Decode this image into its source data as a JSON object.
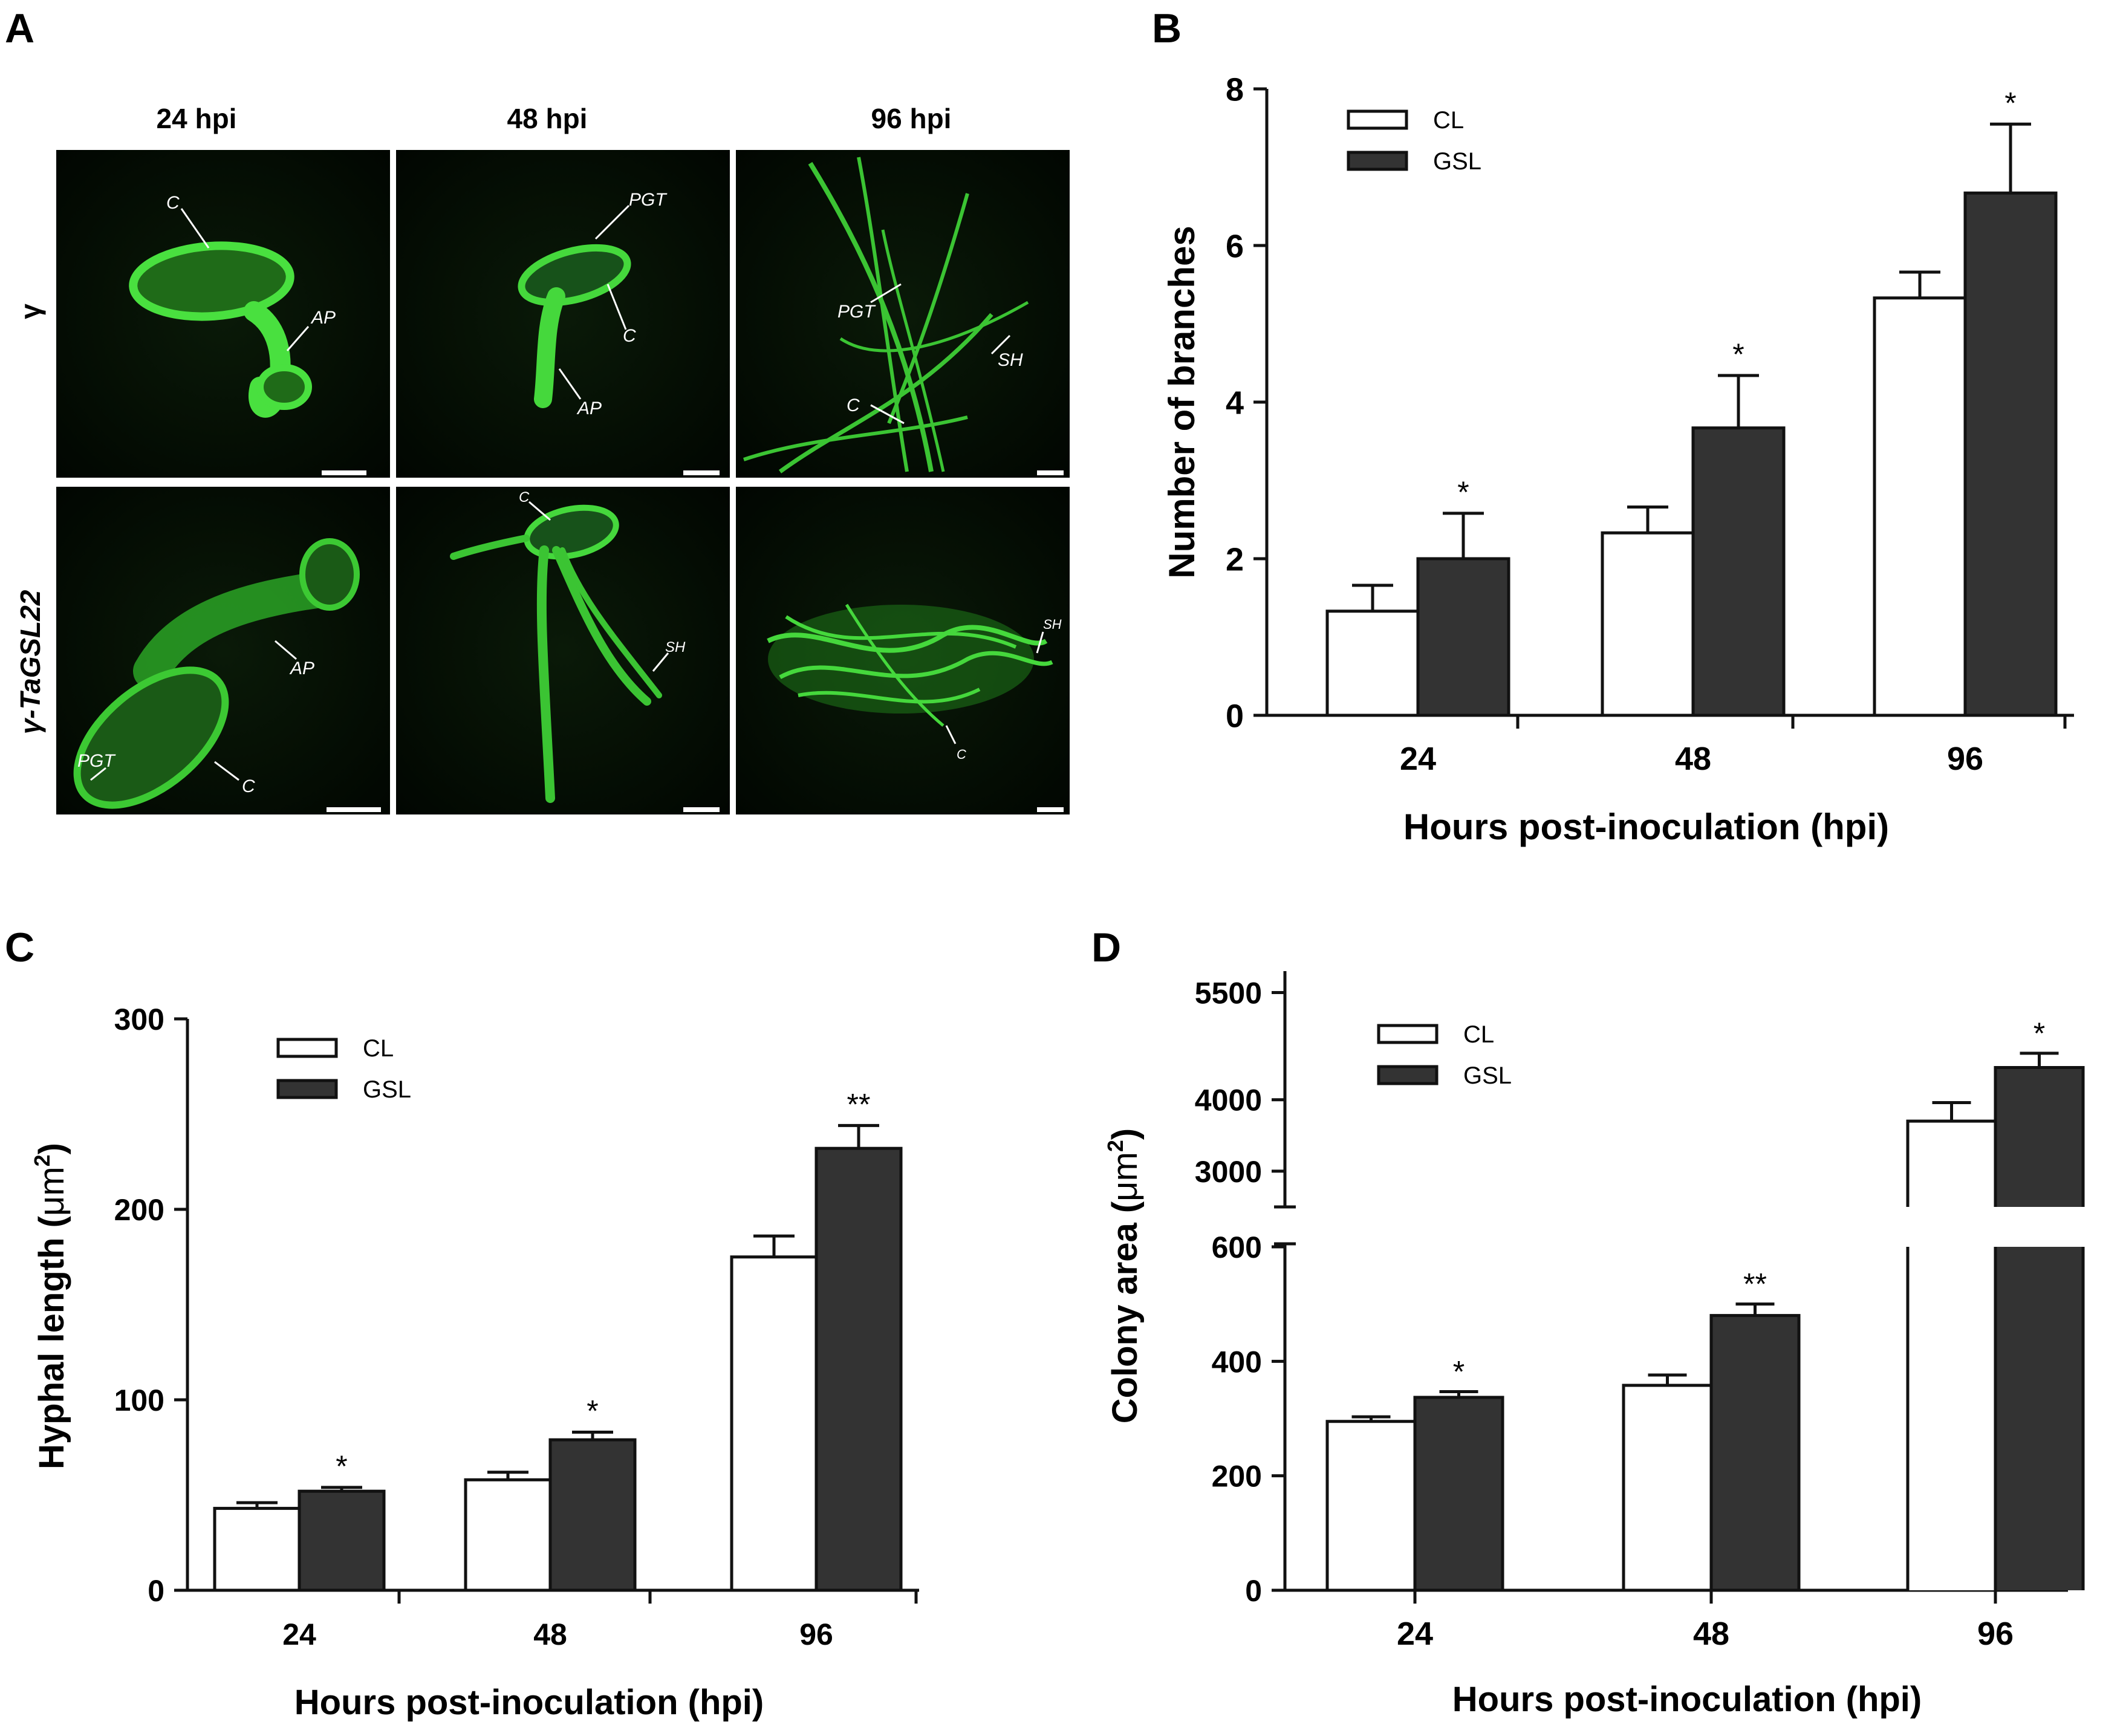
{
  "colors": {
    "cl_fill": "#ffffff",
    "gsl_fill": "#333333",
    "axis": "#111111",
    "micro_bg": "#020a02",
    "micro_green": "#3fd43a"
  },
  "panel_labels": [
    "A",
    "B",
    "C",
    "D"
  ],
  "micrographs": {
    "columns": [
      "24 hpi",
      "48 hpi",
      "96 hpi"
    ],
    "rows": [
      "γ",
      "γ-TaGSL22"
    ],
    "annotations": {
      "r0c0": [
        "C",
        "AP"
      ],
      "r0c1": [
        "PGT",
        "C",
        "AP"
      ],
      "r0c2": [
        "PGT",
        "SH",
        "C"
      ],
      "r1c0": [
        "AP",
        "PGT",
        "C"
      ],
      "r1c1": [
        "C",
        "SH"
      ],
      "r1c2": [
        "SH",
        "C"
      ]
    }
  },
  "chart_data": [
    {
      "type": "bar",
      "panel": "B",
      "categories": [
        "24",
        "48",
        "96"
      ],
      "xlabel": "Hours post-inoculation (hpi)",
      "ylabel": "Number of branches",
      "ylim": [
        0,
        8
      ],
      "yticks": [
        "0",
        "2",
        "4",
        "6",
        "8"
      ],
      "legend": {
        "position": "top-left"
      },
      "series": [
        {
          "name": "CL",
          "values": [
            1.33,
            2.33,
            5.33
          ],
          "errors": [
            0.33,
            0.33,
            0.33
          ],
          "sig": [
            "",
            "",
            ""
          ]
        },
        {
          "name": "GSL",
          "values": [
            2.0,
            3.67,
            6.67
          ],
          "errors": [
            0.58,
            0.67,
            0.88
          ],
          "sig": [
            "*",
            "*",
            "*"
          ]
        }
      ]
    },
    {
      "type": "bar",
      "panel": "C",
      "categories": [
        "24",
        "48",
        "96"
      ],
      "xlabel": "Hours post-inoculation (hpi)",
      "ylabel": "Hyphal length (μm2)",
      "ylabel_main": "Hyphal length (",
      "ylabel_unit": "μm",
      "ylabel_sup": "2",
      "ylabel_close": ")",
      "ylim": [
        0,
        300
      ],
      "yticks": [
        "0",
        "100",
        "200",
        "300"
      ],
      "legend": {
        "position": "top-left"
      },
      "series": [
        {
          "name": "CL",
          "values": [
            43,
            58,
            175
          ],
          "errors": [
            3,
            4,
            11
          ],
          "sig": [
            "",
            "",
            ""
          ]
        },
        {
          "name": "GSL",
          "values": [
            52,
            79,
            232
          ],
          "errors": [
            2,
            4,
            12
          ],
          "sig": [
            "*",
            "*",
            "**"
          ]
        }
      ]
    },
    {
      "type": "bar",
      "panel": "D",
      "categories": [
        "24",
        "48",
        "96"
      ],
      "xlabel": "Hours post-inoculation (hpi)",
      "ylabel": "Colony area (μm2)",
      "ylabel_main": "Colony area (",
      "ylabel_unit": "μm",
      "ylabel_sup": "2",
      "ylabel_close": ")",
      "broken_axis": {
        "lower": [
          0,
          600
        ],
        "upper": [
          2500,
          5800
        ]
      },
      "yticks_lower": [
        "0",
        "200",
        "400",
        "600"
      ],
      "yticks_upper": [
        "3000",
        "4000",
        "5500"
      ],
      "legend": {
        "position": "top-left"
      },
      "series": [
        {
          "name": "CL",
          "values": [
            295,
            358,
            3700
          ],
          "errors": [
            8,
            18,
            260
          ],
          "sig": [
            "",
            "",
            ""
          ]
        },
        {
          "name": "GSL",
          "values": [
            337,
            480,
            4450
          ],
          "errors": [
            10,
            20,
            200
          ],
          "sig": [
            "*",
            "**",
            "*"
          ]
        }
      ]
    }
  ]
}
